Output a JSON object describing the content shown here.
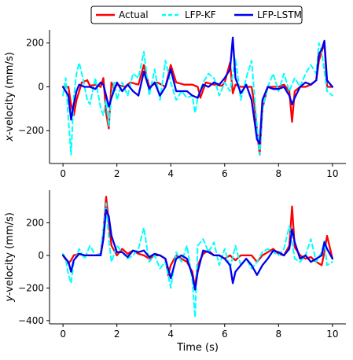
{
  "legend": {
    "entries": [
      {
        "label": "Actual",
        "color": "#ff0000",
        "style": "solid"
      },
      {
        "label": "LFP-KF",
        "color": "#00ffff",
        "style": "dashed"
      },
      {
        "label": "LFP-LSTM",
        "color": "#0000ee",
        "style": "solid"
      }
    ]
  },
  "chart_data": [
    {
      "type": "line",
      "ylabel_var": "x",
      "ylabel_rest": "-velocity (mm/s)",
      "xlabel": "",
      "xlim": [
        -0.5,
        10.5
      ],
      "ylim": [
        -350,
        260
      ],
      "xticks": [
        0,
        2,
        4,
        6,
        8,
        10
      ],
      "yticks": [
        -200,
        0,
        200
      ],
      "series": [
        {
          "name": "Actual",
          "color": "#ff0000",
          "x": [
            0,
            0.2,
            0.3,
            0.4,
            0.5,
            0.7,
            0.9,
            1.0,
            1.2,
            1.4,
            1.5,
            1.6,
            1.7,
            1.8,
            1.9,
            2.0,
            2.3,
            2.5,
            2.8,
            3.0,
            3.2,
            3.5,
            3.8,
            4.0,
            4.2,
            4.5,
            4.8,
            5.0,
            5.1,
            5.3,
            5.6,
            5.9,
            6.0,
            6.2,
            6.3,
            6.4,
            6.6,
            6.9,
            7.0,
            7.1,
            7.2,
            7.3,
            7.4,
            7.6,
            7.8,
            8.0,
            8.2,
            8.4,
            8.5,
            8.6,
            8.8,
            9.0,
            9.2,
            9.4,
            9.5,
            9.6,
            9.7,
            9.8,
            10.0
          ],
          "y": [
            0,
            0,
            -80,
            -130,
            -60,
            20,
            30,
            5,
            10,
            0,
            40,
            -120,
            -190,
            20,
            -10,
            10,
            0,
            20,
            10,
            100,
            0,
            20,
            0,
            100,
            20,
            10,
            10,
            0,
            -50,
            20,
            10,
            5,
            20,
            110,
            -30,
            10,
            0,
            0,
            0,
            -80,
            -200,
            -310,
            -100,
            0,
            0,
            0,
            10,
            -20,
            -160,
            -20,
            0,
            0,
            10,
            30,
            120,
            160,
            200,
            0,
            0
          ]
        },
        {
          "name": "LFP-KF",
          "color": "#00ffff",
          "x": [
            0,
            0.1,
            0.2,
            0.3,
            0.4,
            0.5,
            0.6,
            0.7,
            0.8,
            0.9,
            1.0,
            1.2,
            1.4,
            1.5,
            1.6,
            1.7,
            1.8,
            1.9,
            2.0,
            2.2,
            2.4,
            2.6,
            2.8,
            3.0,
            3.2,
            3.4,
            3.6,
            3.8,
            4.0,
            4.2,
            4.4,
            4.6,
            4.8,
            4.9,
            5.0,
            5.2,
            5.4,
            5.6,
            5.8,
            6.0,
            6.2,
            6.4,
            6.6,
            6.8,
            7.0,
            7.2,
            7.3,
            7.4,
            7.6,
            7.8,
            8.0,
            8.2,
            8.4,
            8.6,
            8.8,
            9.0,
            9.2,
            9.4,
            9.5,
            9.6,
            9.8,
            10.0
          ],
          "y": [
            -40,
            40,
            -150,
            -310,
            -50,
            60,
            110,
            60,
            0,
            -60,
            -80,
            40,
            -100,
            -130,
            -60,
            -180,
            -40,
            20,
            -60,
            20,
            -40,
            60,
            40,
            160,
            -40,
            80,
            -60,
            120,
            20,
            -60,
            -20,
            -50,
            -40,
            -120,
            -50,
            20,
            60,
            40,
            -40,
            20,
            -20,
            130,
            -60,
            40,
            120,
            -180,
            -310,
            -100,
            0,
            60,
            -20,
            60,
            -20,
            40,
            0,
            60,
            100,
            60,
            200,
            160,
            -20,
            -40
          ]
        },
        {
          "name": "LFP-LSTM",
          "color": "#0000ee",
          "x": [
            0,
            0.2,
            0.3,
            0.4,
            0.5,
            0.6,
            0.8,
            1.0,
            1.2,
            1.4,
            1.5,
            1.6,
            1.7,
            1.8,
            2.0,
            2.2,
            2.4,
            2.6,
            2.8,
            3.0,
            3.2,
            3.4,
            3.6,
            3.8,
            4.0,
            4.2,
            4.4,
            4.6,
            4.8,
            5.0,
            5.2,
            5.4,
            5.6,
            5.8,
            6.0,
            6.2,
            6.3,
            6.4,
            6.6,
            6.8,
            7.0,
            7.1,
            7.2,
            7.3,
            7.4,
            7.6,
            7.8,
            8.0,
            8.2,
            8.4,
            8.5,
            8.6,
            8.8,
            9.0,
            9.2,
            9.4,
            9.5,
            9.6,
            9.7,
            9.8,
            10.0
          ],
          "y": [
            0,
            -40,
            -150,
            -80,
            -20,
            10,
            0,
            0,
            -10,
            20,
            10,
            -40,
            -90,
            -50,
            20,
            -20,
            10,
            -20,
            -40,
            70,
            -10,
            20,
            -40,
            0,
            80,
            -20,
            -20,
            -20,
            -40,
            -50,
            10,
            0,
            20,
            10,
            40,
            80,
            225,
            40,
            -30,
            10,
            -60,
            -150,
            -240,
            -260,
            -60,
            0,
            -10,
            -10,
            0,
            -40,
            -80,
            -50,
            0,
            20,
            10,
            30,
            150,
            170,
            210,
            30,
            0
          ]
        }
      ]
    },
    {
      "type": "line",
      "ylabel_var": "y",
      "ylabel_rest": "-velocity (mm/s)",
      "xlabel": "Time (s)",
      "xlim": [
        -0.5,
        10.5
      ],
      "ylim": [
        -420,
        400
      ],
      "xticks": [
        0,
        2,
        4,
        6,
        8,
        10
      ],
      "yticks": [
        -400,
        -200,
        0,
        200
      ],
      "series": [
        {
          "name": "Actual",
          "color": "#ff0000",
          "x": [
            0,
            0.2,
            0.3,
            0.4,
            0.6,
            0.8,
            1.0,
            1.2,
            1.4,
            1.5,
            1.6,
            1.7,
            1.8,
            2.0,
            2.2,
            2.4,
            2.6,
            2.8,
            3.0,
            3.2,
            3.4,
            3.6,
            3.8,
            3.9,
            4.0,
            4.2,
            4.4,
            4.6,
            4.8,
            4.9,
            5.0,
            5.2,
            5.4,
            5.6,
            5.8,
            6.0,
            6.2,
            6.4,
            6.6,
            6.8,
            7.0,
            7.2,
            7.4,
            7.6,
            7.8,
            8.0,
            8.2,
            8.4,
            8.5,
            8.6,
            8.8,
            9.0,
            9.2,
            9.4,
            9.6,
            9.7,
            9.8,
            10.0
          ],
          "y": [
            0,
            -50,
            -30,
            0,
            10,
            0,
            0,
            0,
            10,
            140,
            360,
            200,
            60,
            0,
            40,
            10,
            30,
            10,
            0,
            -20,
            0,
            0,
            -20,
            -120,
            -60,
            0,
            -20,
            -40,
            -100,
            -200,
            -60,
            10,
            30,
            0,
            0,
            -20,
            0,
            -30,
            0,
            0,
            0,
            -40,
            0,
            20,
            40,
            10,
            0,
            60,
            300,
            50,
            0,
            -20,
            -10,
            -40,
            -60,
            20,
            120,
            -20
          ]
        },
        {
          "name": "LFP-KF",
          "color": "#00ffff",
          "x": [
            0,
            0.1,
            0.2,
            0.3,
            0.4,
            0.6,
            0.8,
            1.0,
            1.2,
            1.4,
            1.5,
            1.6,
            1.7,
            1.8,
            2.0,
            2.2,
            2.4,
            2.6,
            2.8,
            3.0,
            3.2,
            3.4,
            3.6,
            3.8,
            4.0,
            4.2,
            4.4,
            4.6,
            4.8,
            4.9,
            5.0,
            5.2,
            5.4,
            5.6,
            5.8,
            6.0,
            6.2,
            6.4,
            6.6,
            6.8,
            7.0,
            7.2,
            7.4,
            7.6,
            7.8,
            8.0,
            8.2,
            8.4,
            8.6,
            8.8,
            9.0,
            9.2,
            9.4,
            9.6,
            9.7,
            9.8,
            10.0
          ],
          "y": [
            10,
            -20,
            -120,
            -170,
            -40,
            40,
            -20,
            60,
            0,
            10,
            160,
            320,
            100,
            -40,
            60,
            20,
            -20,
            0,
            40,
            170,
            -40,
            0,
            -80,
            -40,
            -200,
            20,
            -40,
            60,
            -150,
            -380,
            60,
            100,
            20,
            80,
            -60,
            40,
            -80,
            60,
            -60,
            -20,
            -80,
            -40,
            20,
            40,
            20,
            0,
            40,
            180,
            -20,
            -40,
            0,
            100,
            -40,
            20,
            90,
            -60,
            -40
          ]
        },
        {
          "name": "LFP-LSTM",
          "color": "#0000ee",
          "x": [
            0,
            0.2,
            0.3,
            0.4,
            0.6,
            0.8,
            1.0,
            1.2,
            1.4,
            1.5,
            1.6,
            1.7,
            1.8,
            2.0,
            2.2,
            2.4,
            2.6,
            2.8,
            3.0,
            3.2,
            3.4,
            3.6,
            3.8,
            3.9,
            4.0,
            4.2,
            4.4,
            4.6,
            4.8,
            4.9,
            5.0,
            5.2,
            5.4,
            5.6,
            5.8,
            6.0,
            6.2,
            6.3,
            6.4,
            6.6,
            6.8,
            7.0,
            7.2,
            7.4,
            7.6,
            7.8,
            8.0,
            8.2,
            8.4,
            8.5,
            8.6,
            8.8,
            9.0,
            9.2,
            9.4,
            9.6,
            9.7,
            9.8,
            10.0
          ],
          "y": [
            0,
            -40,
            -100,
            -30,
            10,
            0,
            0,
            0,
            0,
            100,
            280,
            240,
            120,
            20,
            20,
            -10,
            30,
            20,
            30,
            -10,
            10,
            0,
            -20,
            -80,
            -140,
            -20,
            0,
            -20,
            -120,
            -210,
            -100,
            30,
            20,
            0,
            0,
            -20,
            -60,
            -170,
            -100,
            -60,
            -20,
            -60,
            -120,
            -60,
            -20,
            30,
            20,
            0,
            40,
            160,
            80,
            -20,
            0,
            -40,
            -20,
            0,
            80,
            40,
            -20
          ]
        }
      ]
    }
  ]
}
